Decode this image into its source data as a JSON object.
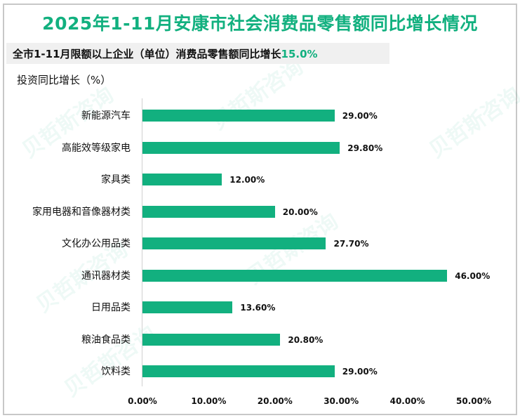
{
  "title": "2025年1-11月安康市社会消费品零售额同比增长情况",
  "subtitle": {
    "text": "全市1-11月限额以上企业（单位）消费品零售额同比增长",
    "highlight": "15.0%"
  },
  "y_axis_title": "投资同比增长（%）",
  "watermark": "贝哲斯咨询",
  "colors": {
    "accent": "#12b07f",
    "bar": "#12b07f"
  },
  "chart_data": {
    "type": "bar",
    "orientation": "horizontal",
    "title": "2025年1-11月安康市社会消费品零售额同比增长情况",
    "subtitle": "全市1-11月限额以上企业（单位）消费品零售额同比增长15.0%",
    "ylabel": "投资同比增长（%）",
    "xlabel": "",
    "categories": [
      "新能源汽车",
      "高能效等级家电",
      "家具类",
      "家用电器和音像器材类",
      "文化办公用品类",
      "通讯器材类",
      "日用品类",
      "粮油食品类",
      "饮料类"
    ],
    "values": [
      29.0,
      29.8,
      12.0,
      20.0,
      27.7,
      46.0,
      13.6,
      20.8,
      29.0
    ],
    "value_labels": [
      "29.00%",
      "29.80%",
      "12.00%",
      "20.00%",
      "27.70%",
      "46.00%",
      "13.60%",
      "20.80%",
      "29.00%"
    ],
    "xlim": [
      0,
      50
    ],
    "x_ticks": [
      "0.00%",
      "10.00%",
      "20.00%",
      "30.00%",
      "40.00%",
      "50.00%"
    ],
    "grid": false,
    "legend": null
  }
}
